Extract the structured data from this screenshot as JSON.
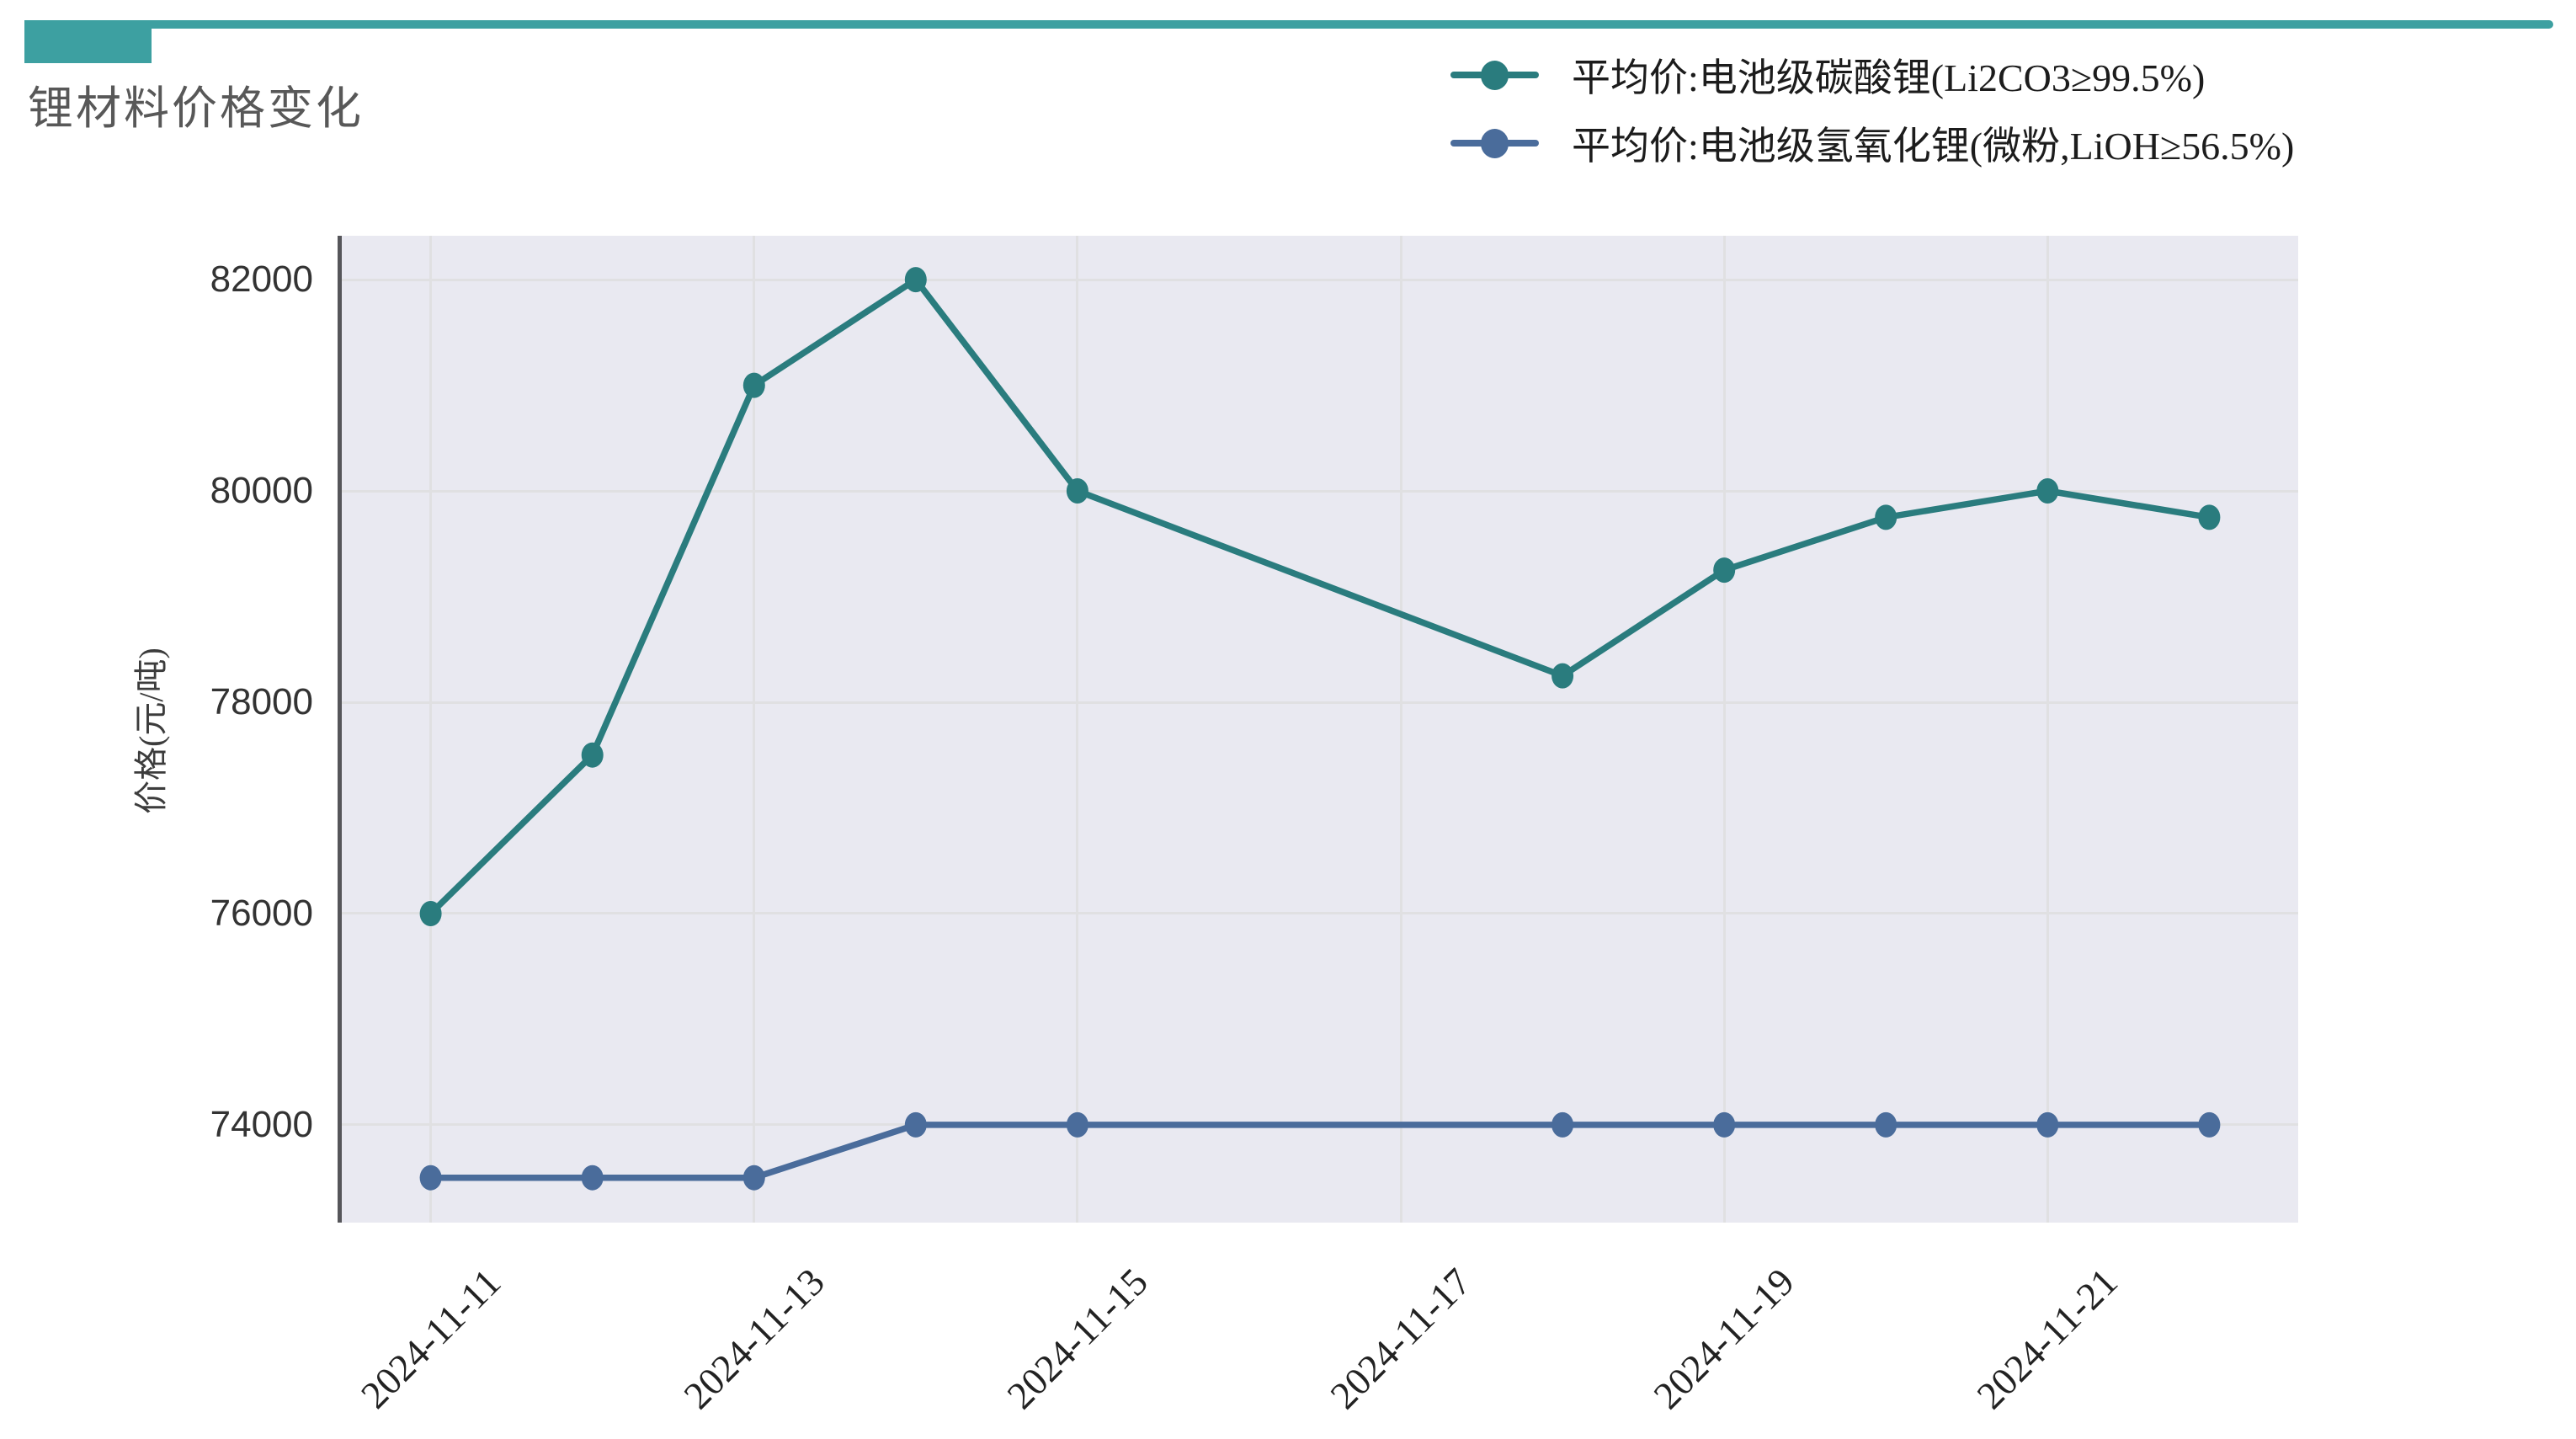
{
  "header": {
    "accent_color": "#3da0a1"
  },
  "chart_data": {
    "type": "line",
    "title": "锂材料价格变化",
    "ylabel": "价格(元/吨)",
    "grid": true,
    "legend_position": "top-right",
    "x_base_date": "2024-11-11",
    "x": [
      "2024-11-11",
      "2024-11-12",
      "2024-11-13",
      "2024-11-14",
      "2024-11-15",
      "2024-11-18",
      "2024-11-19",
      "2024-11-20",
      "2024-11-21",
      "2024-11-22"
    ],
    "series": [
      {
        "name": "平均价:电池级碳酸锂(Li2CO3≥99.5%)",
        "color": "#2a7c7e",
        "values": [
          76000,
          77500,
          81000,
          82000,
          80000,
          78250,
          79250,
          79750,
          80000,
          79750
        ]
      },
      {
        "name": "平均价:电池级氢氧化锂(微粉,LiOH≥56.5%)",
        "color": "#4a6c9b",
        "values": [
          73500,
          73500,
          73500,
          74000,
          74000,
          74000,
          74000,
          74000,
          74000,
          74000
        ]
      }
    ],
    "x_ticks": [
      "2024-11-11",
      "2024-11-13",
      "2024-11-15",
      "2024-11-17",
      "2024-11-19",
      "2024-11-21"
    ],
    "y_ticks": [
      74000,
      76000,
      78000,
      80000,
      82000
    ],
    "ylim": [
      73075,
      82415
    ],
    "xlim_days": [
      -0.55,
      11.55
    ]
  }
}
